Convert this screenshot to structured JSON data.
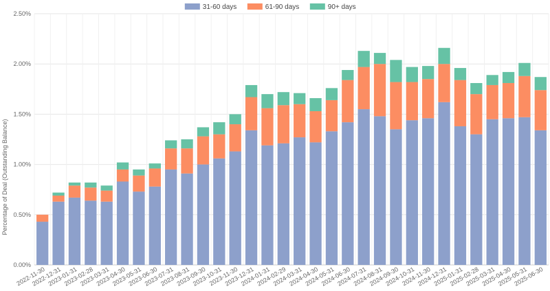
{
  "chart_data": {
    "type": "bar",
    "stacked": true,
    "ylabel": "Percentage of Deal (Outstanding Balance)",
    "xlabel": "",
    "ylim": [
      0,
      2.5
    ],
    "yticks": [
      "0.00%",
      "0.50%",
      "1.00%",
      "1.50%",
      "2.00%",
      "2.50%"
    ],
    "grid": true,
    "legend_position": "top-center",
    "categories": [
      "2022-11-30",
      "2022-12-31",
      "2023-01-31",
      "2023-02-28",
      "2023-03-31",
      "2023-04-30",
      "2023-05-31",
      "2023-06-30",
      "2023-07-31",
      "2023-08-31",
      "2023-09-30",
      "2023-10-31",
      "2023-11-30",
      "2023-12-31",
      "2024-01-31",
      "2024-02-29",
      "2024-03-31",
      "2024-04-30",
      "2024-05-31",
      "2024-06-30",
      "2024-07-31",
      "2024-08-31",
      "2024-09-30",
      "2024-10-31",
      "2024-11-30",
      "2024-12-31",
      "2025-01-31",
      "2025-02-28",
      "2025-03-31",
      "2025-04-30",
      "2025-05-31",
      "2025-06-30"
    ],
    "series": [
      {
        "name": "31-60 days",
        "color": "#8da0cb",
        "values": [
          0.43,
          0.63,
          0.67,
          0.64,
          0.63,
          0.83,
          0.73,
          0.78,
          0.95,
          0.91,
          1.0,
          1.06,
          1.13,
          1.34,
          1.19,
          1.21,
          1.27,
          1.22,
          1.33,
          1.42,
          1.55,
          1.48,
          1.35,
          1.44,
          1.46,
          1.62,
          1.38,
          1.3,
          1.45,
          1.46,
          1.47,
          1.34
        ]
      },
      {
        "name": "61-90 days",
        "color": "#fc8d62",
        "values": [
          0.07,
          0.06,
          0.12,
          0.13,
          0.11,
          0.12,
          0.16,
          0.18,
          0.21,
          0.25,
          0.28,
          0.24,
          0.27,
          0.33,
          0.37,
          0.38,
          0.33,
          0.31,
          0.31,
          0.42,
          0.42,
          0.52,
          0.47,
          0.38,
          0.39,
          0.38,
          0.46,
          0.4,
          0.34,
          0.35,
          0.41,
          0.4
        ]
      },
      {
        "name": "90+ days",
        "color": "#66c2a5",
        "values": [
          0.0,
          0.03,
          0.03,
          0.05,
          0.05,
          0.07,
          0.06,
          0.05,
          0.08,
          0.09,
          0.09,
          0.12,
          0.1,
          0.12,
          0.14,
          0.13,
          0.11,
          0.13,
          0.12,
          0.1,
          0.16,
          0.11,
          0.22,
          0.15,
          0.13,
          0.16,
          0.12,
          0.11,
          0.1,
          0.11,
          0.13,
          0.13
        ]
      }
    ]
  }
}
